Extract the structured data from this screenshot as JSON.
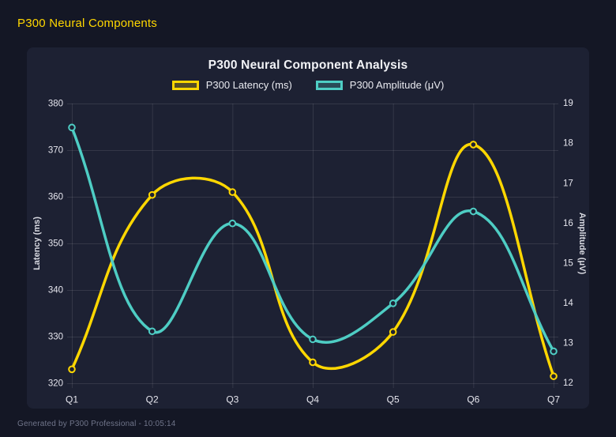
{
  "header": {
    "title": "P300 Neural Components"
  },
  "footer": {
    "text": "Generated by P300 Professional - 10:05:14"
  },
  "chart_data": {
    "type": "line",
    "title": "P300 Neural Component Analysis",
    "categories": [
      "Q1",
      "Q2",
      "Q3",
      "Q4",
      "Q5",
      "Q6",
      "Q7"
    ],
    "series": [
      {
        "name": "P300 Latency (ms)",
        "axis": "left",
        "color": "#ffd700",
        "values": [
          323,
          360.4,
          361,
          324.5,
          331,
          371.2,
          321.5
        ]
      },
      {
        "name": "P300 Amplitude (μV)",
        "axis": "right",
        "color": "#4ecdc4",
        "values": [
          18.4,
          13.3,
          16.0,
          13.1,
          14.0,
          16.3,
          12.8
        ]
      }
    ],
    "left_axis": {
      "title": "Latency (ms)",
      "min": 320,
      "max": 380,
      "step": 10
    },
    "right_axis": {
      "title": "Amplitude (μV)",
      "min": 12,
      "max": 19,
      "step": 1
    },
    "grid": true,
    "legend_position": "top",
    "line_tension": 0.4,
    "colors": {
      "grid": "rgba(255,255,255,0.10)",
      "tick_text": "#e6e6ee",
      "axis_title_text": "#d9dae2",
      "background_card": "#1d2133",
      "background_page": "#141725",
      "title_text": "#f2f3f7",
      "legend_text": "#e9eaf0",
      "header_text": "#ffd700",
      "footer_text": "#70758a"
    }
  }
}
